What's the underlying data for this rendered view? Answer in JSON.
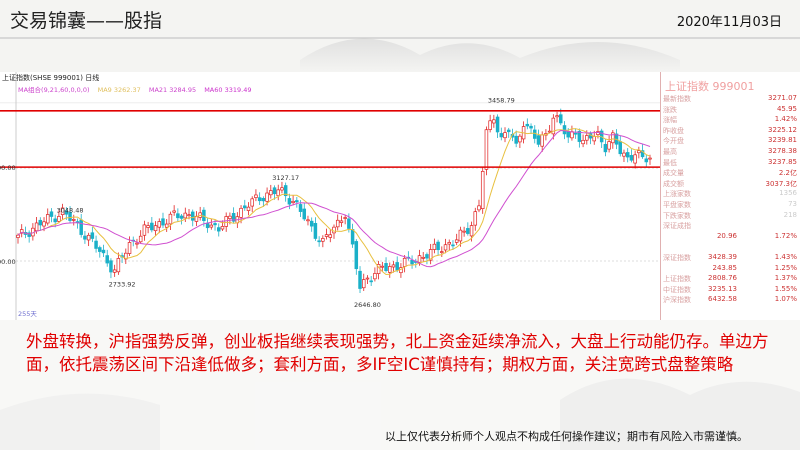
{
  "slide": {
    "title": "交易锦囊——股指",
    "date": "2020年11月03日",
    "summary": "外盘转换，沪指强势反弹，创业板指继续表现强势，北上资金延续净流入，大盘上行动能仍存。单边方面，依托震荡区间下沿逢低做多；套利方面，多IF空IC谨慎持有；期权方面，关注宽跨式盘整策略",
    "disclaimer": "以上仅代表分析师个人观点不构成任何操作建议；期市有风险入市需谨慎。"
  },
  "chart_data": {
    "type": "candlestick",
    "header": "上证指数(SHSE 999001)  日线",
    "ma_legend": [
      {
        "label": "MA组合(9,21,60,0,0,0)",
        "color": "#cc44cc"
      },
      {
        "label": "MA9 3262.37",
        "color": "#e0c060"
      },
      {
        "label": "MA21 3284.95",
        "color": "#cc44cc"
      },
      {
        "label": "MA60 3319.49",
        "color": "#cc33cc"
      }
    ],
    "y_labels": [
      "00.00",
      "00.00"
    ],
    "period_label": "255天",
    "ylim": [
      2600,
      3520
    ],
    "annotations": [
      {
        "label": "3048.48",
        "index": 12,
        "value": 3048.48
      },
      {
        "label": "2733.92",
        "index": 26,
        "value": 2733.92
      },
      {
        "label": "3127.17",
        "index": 70,
        "value": 3127.17
      },
      {
        "label": "2646.80",
        "index": 92,
        "value": 2646.8
      },
      {
        "label": "3458.79",
        "index": 128,
        "value": 3458.79
      }
    ],
    "red_levels": [
      3440,
      3200
    ],
    "series": [
      {
        "name": "MA9",
        "color": "#e8c040"
      },
      {
        "name": "MA21",
        "color": "#d050d0"
      }
    ],
    "anchors": [
      [
        0,
        2900
      ],
      [
        6,
        2960
      ],
      [
        12,
        3010
      ],
      [
        16,
        2950
      ],
      [
        20,
        2880
      ],
      [
        24,
        2800
      ],
      [
        26,
        2760
      ],
      [
        30,
        2870
      ],
      [
        34,
        2930
      ],
      [
        38,
        2960
      ],
      [
        42,
        2990
      ],
      [
        46,
        3000
      ],
      [
        50,
        2970
      ],
      [
        54,
        2940
      ],
      [
        58,
        2990
      ],
      [
        62,
        3040
      ],
      [
        66,
        3080
      ],
      [
        70,
        3100
      ],
      [
        74,
        3060
      ],
      [
        78,
        2960
      ],
      [
        82,
        2880
      ],
      [
        86,
        2960
      ],
      [
        88,
        3010
      ],
      [
        90,
        2850
      ],
      [
        92,
        2690
      ],
      [
        94,
        2730
      ],
      [
        98,
        2770
      ],
      [
        102,
        2780
      ],
      [
        106,
        2800
      ],
      [
        110,
        2830
      ],
      [
        114,
        2860
      ],
      [
        118,
        2890
      ],
      [
        120,
        2920
      ],
      [
        122,
        2960
      ],
      [
        124,
        3040
      ],
      [
        126,
        3340
      ],
      [
        128,
        3420
      ],
      [
        130,
        3320
      ],
      [
        132,
        3360
      ],
      [
        134,
        3280
      ],
      [
        136,
        3400
      ],
      [
        138,
        3350
      ],
      [
        140,
        3300
      ],
      [
        142,
        3340
      ],
      [
        144,
        3420
      ],
      [
        146,
        3380
      ],
      [
        148,
        3320
      ],
      [
        150,
        3360
      ],
      [
        152,
        3300
      ],
      [
        154,
        3330
      ],
      [
        156,
        3340
      ],
      [
        158,
        3290
      ],
      [
        160,
        3320
      ],
      [
        162,
        3270
      ],
      [
        164,
        3240
      ],
      [
        166,
        3260
      ],
      [
        168,
        3230
      ],
      [
        170,
        3245
      ]
    ]
  },
  "quote_panel": {
    "title": "上证指数  999001",
    "rows": [
      {
        "label": "最新指数",
        "v1": "",
        "v2": "3271.07"
      },
      {
        "label": "涨跌",
        "v1": "",
        "v2": "45.95"
      },
      {
        "label": "涨幅",
        "v1": "",
        "v2": "1.42%"
      },
      {
        "label": "昨收盘",
        "v1": "",
        "v2": "3225.12"
      },
      {
        "label": "今开盘",
        "v1": "",
        "v2": "3239.81"
      },
      {
        "label": "最高",
        "v1": "",
        "v2": "3278.38"
      },
      {
        "label": "最低",
        "v1": "",
        "v2": "3237.85"
      },
      {
        "label": "成交量",
        "v1": "",
        "v2": "2.2亿"
      },
      {
        "label": "成交额",
        "v1": "",
        "v2": "3037.3亿"
      },
      {
        "label": "上涨家数",
        "v1": "",
        "v2": "1356"
      },
      {
        "label": "平盘家数",
        "v1": "",
        "v2": "73"
      },
      {
        "label": "下跌家数",
        "v1": "",
        "v2": "218"
      },
      {
        "label": "深证成指",
        "v1": "",
        "v2": ""
      },
      {
        "label": "",
        "v1": "20.96",
        "v2": "1.72%"
      },
      {
        "label": "",
        "v1": "",
        "v2": ""
      },
      {
        "label": "深证指数",
        "v1": "3428.39",
        "v2": "1.43%"
      },
      {
        "label": "",
        "v1": "243.85",
        "v2": "1.25%"
      },
      {
        "label": "上证指数",
        "v1": "2808.76",
        "v2": "1.37%"
      },
      {
        "label": "中证指数",
        "v1": "3235.13",
        "v2": "1.55%"
      },
      {
        "label": "沪深指数",
        "v1": "6432.58",
        "v2": "1.07%"
      }
    ]
  },
  "colors": {
    "up": "#e02020",
    "down": "#1ab0c8",
    "ma9": "#e8c040",
    "ma21": "#d050d0",
    "level": "#e00000",
    "summary": "#e00000"
  }
}
